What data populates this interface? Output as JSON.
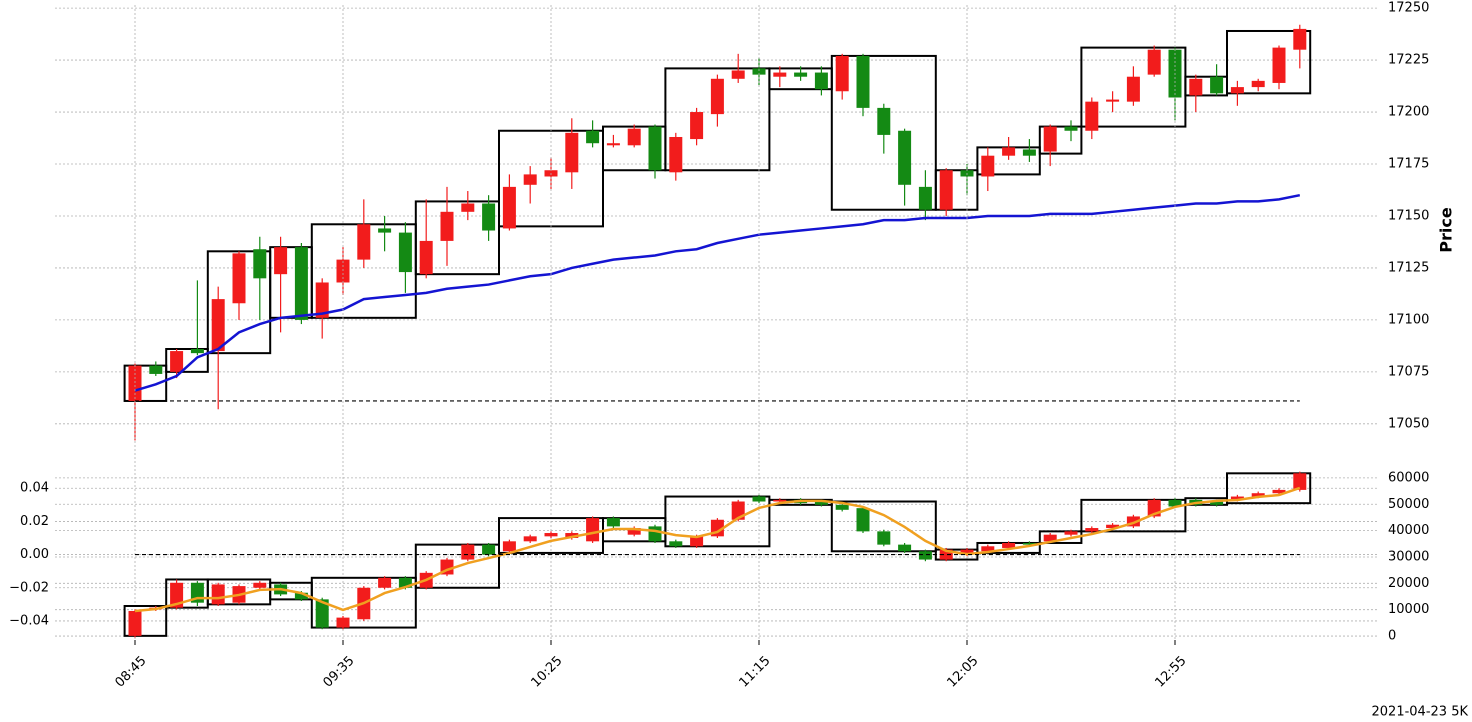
{
  "chart_data": [
    {
      "type": "candlestick",
      "ylabel": "Price",
      "y_axis_side": "right",
      "grid": true,
      "ylim": [
        17035,
        17251.5
      ],
      "yticks": [
        17050,
        17075,
        17100,
        17125,
        17150,
        17175,
        17200,
        17225,
        17250
      ],
      "up_color": "#f21c1c",
      "down_color": "#148a14",
      "ohlc": {
        "open": [
          17061,
          17078,
          17075,
          17086,
          17085,
          17108,
          17134,
          17122,
          17135,
          17101,
          17118,
          17129,
          17144,
          17142,
          17122,
          17138,
          17152,
          17156,
          17144,
          17165,
          17169,
          17171,
          17191,
          17184,
          17184,
          17193,
          17171,
          17187,
          17199,
          17216,
          17221,
          17217,
          17219,
          17219,
          17210,
          17227,
          17202,
          17191,
          17164,
          17153,
          17172,
          17169,
          17179,
          17182,
          17181,
          17193,
          17191,
          17205,
          17205,
          17218,
          17230,
          17208,
          17217,
          17209,
          17212,
          17214,
          17230
        ],
        "high": [
          17079,
          17080,
          17086,
          17119,
          17116,
          17133,
          17140,
          17140,
          17137,
          17120,
          17135,
          17158,
          17150,
          17147,
          17158,
          17164,
          17162,
          17160,
          17170,
          17174,
          17178,
          17197,
          17196,
          17189,
          17194,
          17194,
          17190,
          17202,
          17218,
          17228,
          17226,
          17222,
          17222,
          17222,
          17228,
          17228,
          17204,
          17192,
          17172,
          17173,
          17175,
          17183,
          17188,
          17187,
          17194,
          17196,
          17207,
          17210,
          17222,
          17232,
          17231,
          17218,
          17223,
          17215,
          17216,
          17232,
          17242
        ],
        "low": [
          17042,
          17073,
          17072,
          17083,
          17057,
          17100,
          17100,
          17094,
          17098,
          17091,
          17112,
          17125,
          17133,
          17113,
          17120,
          17126,
          17148,
          17138,
          17143,
          17156,
          17163,
          17163,
          17183,
          17183,
          17183,
          17168,
          17167,
          17184,
          17193,
          17214,
          17213,
          17212,
          17215,
          17208,
          17206,
          17198,
          17180,
          17155,
          17148,
          17150,
          17160,
          17162,
          17177,
          17176,
          17174,
          17186,
          17187,
          17200,
          17203,
          17217,
          17196,
          17200,
          17208,
          17203,
          17210,
          17211,
          17221
        ],
        "close": [
          17078,
          17074,
          17085,
          17084,
          17110,
          17132,
          17120,
          17135,
          17100,
          17118,
          17129,
          17146,
          17142,
          17123,
          17138,
          17152,
          17156,
          17143,
          17164,
          17170,
          17172,
          17190,
          17185,
          17185,
          17192,
          17172,
          17188,
          17200,
          17216,
          17220,
          17218,
          17219,
          17217,
          17211,
          17227,
          17202,
          17189,
          17165,
          17153,
          17172,
          17169,
          17179,
          17183,
          17179,
          17193,
          17191,
          17205,
          17206,
          17217,
          17230,
          17207,
          17216,
          17209,
          17212,
          17215,
          17231,
          17240
        ]
      },
      "boxes": [
        {
          "start": 0,
          "end": 1,
          "top": 17078,
          "bottom": 17061
        },
        {
          "start": 2,
          "end": 3,
          "top": 17086,
          "bottom": 17075
        },
        {
          "start": 4,
          "end": 6,
          "top": 17133,
          "bottom": 17084
        },
        {
          "start": 7,
          "end": 8,
          "top": 17135,
          "bottom": 17101
        },
        {
          "start": 9,
          "end": 13,
          "top": 17146,
          "bottom": 17101
        },
        {
          "start": 14,
          "end": 17,
          "top": 17157,
          "bottom": 17122
        },
        {
          "start": 18,
          "end": 22,
          "top": 17191,
          "bottom": 17145
        },
        {
          "start": 23,
          "end": 25,
          "top": 17193,
          "bottom": 17172
        },
        {
          "start": 26,
          "end": 30,
          "top": 17221,
          "bottom": 17172
        },
        {
          "start": 31,
          "end": 33,
          "top": 17221,
          "bottom": 17211
        },
        {
          "start": 34,
          "end": 38,
          "top": 17227,
          "bottom": 17153
        },
        {
          "start": 39,
          "end": 40,
          "top": 17172,
          "bottom": 17153
        },
        {
          "start": 41,
          "end": 43,
          "top": 17183,
          "bottom": 17170
        },
        {
          "start": 44,
          "end": 45,
          "top": 17193,
          "bottom": 17180
        },
        {
          "start": 46,
          "end": 50,
          "top": 17231,
          "bottom": 17193
        },
        {
          "start": 51,
          "end": 52,
          "top": 17217,
          "bottom": 17208
        },
        {
          "start": 53,
          "end": 56,
          "top": 17239,
          "bottom": 17209
        }
      ],
      "reference_line": {
        "value": 17061,
        "color": "#000000"
      },
      "line": {
        "color": "#1414d2",
        "values": [
          17066,
          17069,
          17073,
          17082,
          17086,
          17094,
          17098,
          17101,
          17102,
          17103,
          17105,
          17110,
          17111,
          17112,
          17113,
          17115,
          17116,
          17117,
          17119,
          17121,
          17122,
          17125,
          17127,
          17129,
          17130,
          17131,
          17133,
          17134,
          17137,
          17139,
          17141,
          17142,
          17143,
          17144,
          17145,
          17146,
          17148,
          17148,
          17149,
          17149,
          17149,
          17150,
          17150,
          17150,
          17151,
          17151,
          17151,
          17152,
          17153,
          17154,
          17155,
          17156,
          17156,
          17157,
          17157,
          17158,
          17160
        ]
      }
    },
    {
      "type": "candlestick",
      "y_axis_side": "left",
      "grid": true,
      "ylim": [
        -0.0515,
        0.051
      ],
      "yticks": [
        {
          "value": -0.04,
          "label": "−0.04"
        },
        {
          "value": -0.02,
          "label": "−0.02"
        },
        {
          "value": 0,
          "label": "0.00"
        },
        {
          "value": 0.02,
          "label": "0.02"
        },
        {
          "value": 0.04,
          "label": "0.04"
        }
      ],
      "y2lim": [
        -1500,
        63000
      ],
      "y2ticks": [
        0,
        10000,
        20000,
        30000,
        40000,
        50000,
        60000
      ],
      "up_color": "#f21c1c",
      "down_color": "#148a14",
      "ohlc": {
        "open": [
          -0.049,
          -0.033,
          -0.032,
          -0.017,
          -0.03,
          -0.029,
          -0.02,
          -0.018,
          -0.023,
          -0.027,
          -0.044,
          -0.039,
          -0.02,
          -0.014,
          -0.02,
          -0.012,
          -0.003,
          0.006,
          0.002,
          0.008,
          0.011,
          0.01,
          0.008,
          0.022,
          0.012,
          0.017,
          0.008,
          0.005,
          0.011,
          0.021,
          0.035,
          0.032,
          0.033,
          0.032,
          0.03,
          0.028,
          0.014,
          0.006,
          0.002,
          -0.003,
          0,
          0.002,
          0.004,
          0.007,
          0.008,
          0.012,
          0.014,
          0.016,
          0.017,
          0.023,
          0.033,
          0.033,
          0.032,
          0.033,
          0.035,
          0.037,
          0.039
        ],
        "high": [
          -0.033,
          -0.031,
          -0.015,
          -0.016,
          -0.017,
          -0.018,
          -0.016,
          -0.017,
          -0.022,
          -0.026,
          -0.037,
          -0.019,
          -0.013,
          -0.013,
          -0.01,
          -0.002,
          0.007,
          0.007,
          0.009,
          0.012,
          0.014,
          0.014,
          0.023,
          0.023,
          0.017,
          0.018,
          0.009,
          0.012,
          0.022,
          0.033,
          0.036,
          0.034,
          0.034,
          0.033,
          0.031,
          0.029,
          0.015,
          0.007,
          0.003,
          0.004,
          0.004,
          0.006,
          0.008,
          0.008,
          0.013,
          0.015,
          0.017,
          0.019,
          0.024,
          0.034,
          0.034,
          0.034,
          0.033,
          0.036,
          0.038,
          0.04,
          0.05
        ],
        "low": [
          -0.05,
          -0.034,
          -0.033,
          -0.031,
          -0.031,
          -0.03,
          -0.021,
          -0.025,
          -0.028,
          -0.045,
          -0.045,
          -0.04,
          -0.021,
          -0.021,
          -0.021,
          -0.013,
          -0.004,
          -0.001,
          0.001,
          0.007,
          0.01,
          0.009,
          0.007,
          0.016,
          0.011,
          0.007,
          0.004,
          0.004,
          0.01,
          0.02,
          0.031,
          0.031,
          0.03,
          0.029,
          0.026,
          0.013,
          0.005,
          0.001,
          -0.004,
          -0.004,
          -0.001,
          0.001,
          0.003,
          0.005,
          0.007,
          0.011,
          0.013,
          0.015,
          0.016,
          0.022,
          0.028,
          0.029,
          0.029,
          0.032,
          0.034,
          0.036,
          0.038
        ],
        "close": [
          -0.034,
          -0.032,
          -0.017,
          -0.029,
          -0.018,
          -0.019,
          -0.017,
          -0.024,
          -0.027,
          -0.044,
          -0.038,
          -0.02,
          -0.014,
          -0.02,
          -0.011,
          -0.003,
          0.006,
          0,
          0.008,
          0.011,
          0.013,
          0.013,
          0.022,
          0.017,
          0.016,
          0.008,
          0.005,
          0.011,
          0.021,
          0.032,
          0.032,
          0.033,
          0.031,
          0.03,
          0.027,
          0.014,
          0.006,
          0.002,
          -0.003,
          0.003,
          0.003,
          0.005,
          0.007,
          0.006,
          0.012,
          0.014,
          0.016,
          0.018,
          0.023,
          0.033,
          0.029,
          0.03,
          0.03,
          0.035,
          0.037,
          0.039,
          0.049
        ]
      },
      "boxes": [
        {
          "start": 0,
          "end": 1,
          "top": -0.031,
          "bottom": -0.049
        },
        {
          "start": 2,
          "end": 3,
          "top": -0.015,
          "bottom": -0.032
        },
        {
          "start": 4,
          "end": 6,
          "top": -0.015,
          "bottom": -0.03
        },
        {
          "start": 7,
          "end": 8,
          "top": -0.017,
          "bottom": -0.027
        },
        {
          "start": 9,
          "end": 13,
          "top": -0.014,
          "bottom": -0.044
        },
        {
          "start": 14,
          "end": 17,
          "top": 0.006,
          "bottom": -0.02
        },
        {
          "start": 18,
          "end": 22,
          "top": 0.022,
          "bottom": 0.001
        },
        {
          "start": 23,
          "end": 25,
          "top": 0.022,
          "bottom": 0.008
        },
        {
          "start": 26,
          "end": 30,
          "top": 0.035,
          "bottom": 0.005
        },
        {
          "start": 31,
          "end": 33,
          "top": 0.033,
          "bottom": 0.03
        },
        {
          "start": 34,
          "end": 38,
          "top": 0.032,
          "bottom": 0.002
        },
        {
          "start": 39,
          "end": 40,
          "top": 0.003,
          "bottom": -0.003
        },
        {
          "start": 41,
          "end": 43,
          "top": 0.007,
          "bottom": 0.001
        },
        {
          "start": 44,
          "end": 45,
          "top": 0.014,
          "bottom": 0.007
        },
        {
          "start": 46,
          "end": 50,
          "top": 0.033,
          "bottom": 0.014
        },
        {
          "start": 51,
          "end": 52,
          "top": 0.034,
          "bottom": 0.03
        },
        {
          "start": 53,
          "end": 56,
          "top": 0.049,
          "bottom": 0.031
        }
      ],
      "reference_line": {
        "value": 0,
        "color": "#000000"
      },
      "line": {
        "color": "#f0a020",
        "axis": "y2",
        "values": [
          9500,
          10250,
          12150,
          14400,
          14400,
          15600,
          17500,
          17800,
          16300,
          12900,
          9900,
          12500,
          16300,
          18600,
          21300,
          25100,
          27700,
          29600,
          31500,
          33800,
          36100,
          37600,
          39100,
          40600,
          40600,
          39900,
          38300,
          37600,
          39500,
          44800,
          48600,
          50500,
          51300,
          51300,
          50500,
          49000,
          45900,
          41400,
          36100,
          32300,
          31100,
          31900,
          33000,
          34200,
          35700,
          37200,
          38700,
          40600,
          42900,
          46300,
          49000,
          50500,
          51300,
          51600,
          52800,
          53500,
          56200
        ]
      },
      "categories": [
        "08:45",
        null,
        null,
        null,
        null,
        null,
        null,
        null,
        null,
        null,
        "09:35",
        null,
        null,
        null,
        null,
        null,
        null,
        null,
        null,
        null,
        "10:25",
        null,
        null,
        null,
        null,
        null,
        null,
        null,
        null,
        null,
        "11:15",
        null,
        null,
        null,
        null,
        null,
        null,
        null,
        null,
        null,
        "12:05",
        null,
        null,
        null,
        null,
        null,
        null,
        null,
        null,
        null,
        "12:55",
        null,
        null,
        null,
        null,
        null,
        null
      ],
      "footnote": "2021-04-23 5K"
    }
  ]
}
